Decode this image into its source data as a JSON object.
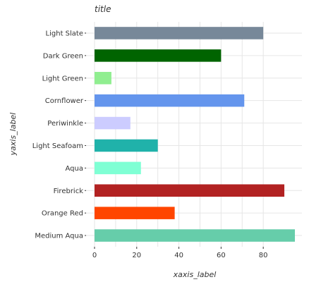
{
  "chart_data": {
    "type": "bar",
    "orientation": "horizontal",
    "title": "title",
    "xlabel": "xaxis_label",
    "ylabel": "yaxis_label",
    "xlim": [
      0,
      95
    ],
    "xticks": [
      0,
      20,
      40,
      60,
      80
    ],
    "grid": true,
    "categories": [
      "Medium Aqua",
      "Orange Red",
      "Firebrick",
      "Aqua",
      "Light Seafoam",
      "Periwinkle",
      "Cornflower",
      "Light Green",
      "Dark Green",
      "Light Slate"
    ],
    "values": [
      95,
      38,
      90,
      22,
      30,
      17,
      71,
      8,
      60,
      80
    ],
    "colors": [
      "#66cdaa",
      "#ff4500",
      "#b22222",
      "#7fffd4",
      "#20b2aa",
      "#ccccff",
      "#6495ed",
      "#90ee90",
      "#006400",
      "#778899"
    ]
  }
}
